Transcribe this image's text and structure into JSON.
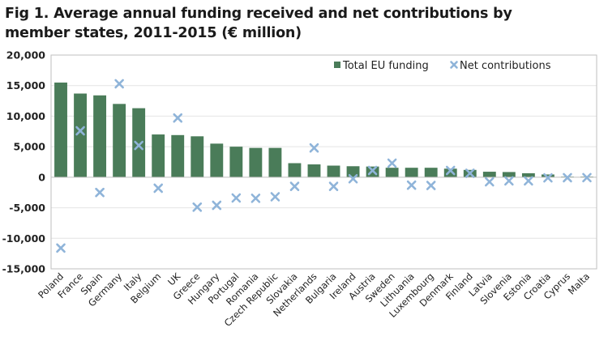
{
  "title_line1": "Fig 1. Average annual funding received and net contributions by",
  "title_line2": "member states, 2011-2015 (€ million)",
  "colors": {
    "bar": "#4a7c59",
    "marker": "#8fb4d9",
    "grid": "#e4e4e4",
    "axis": "#bfbfbf"
  },
  "chart_data": {
    "type": "bar",
    "title": "Fig 1. Average annual funding received and net contributions by member states, 2011-2015 (€ million)",
    "xlabel": "",
    "ylabel": "",
    "ylim": [
      -15000,
      20000
    ],
    "yticks": [
      20000,
      15000,
      10000,
      5000,
      0,
      -5000,
      -10000,
      -15000
    ],
    "ytick_labels": [
      "20,000",
      "15,000",
      "10,000",
      "5,000",
      "0",
      "-5,000",
      "-10,000",
      "-15,000"
    ],
    "grid": true,
    "legend_position": "top-right",
    "categories": [
      "Poland",
      "France",
      "Spain",
      "Germany",
      "Italy",
      "Belgium",
      "UK",
      "Greece",
      "Hungary",
      "Portugal",
      "Romania",
      "Czech Republic",
      "Slovakia",
      "Netherlands",
      "Bulgaria",
      "Ireland",
      "Austria",
      "Sweden",
      "Lithuania",
      "Luxembourg",
      "Denmark",
      "Finland",
      "Latvia",
      "Slovenia",
      "Estonia",
      "Croatia",
      "Cyprus",
      "Malta"
    ],
    "series": [
      {
        "name": "Total EU funding",
        "type": "bar",
        "values": [
          15500,
          13700,
          13400,
          12000,
          11300,
          7000,
          6900,
          6700,
          5500,
          5000,
          4800,
          4800,
          2300,
          2100,
          1900,
          1800,
          1750,
          1550,
          1550,
          1550,
          1400,
          1200,
          900,
          850,
          650,
          450,
          100,
          100
        ]
      },
      {
        "name": "Net contributions",
        "type": "scatter",
        "values": [
          -11600,
          7600,
          -2500,
          15300,
          5200,
          -1800,
          9700,
          -4900,
          -4600,
          -3400,
          -3450,
          -3200,
          -1500,
          4800,
          -1500,
          -250,
          1100,
          2300,
          -1300,
          -1350,
          1100,
          650,
          -750,
          -600,
          -600,
          -100,
          -80,
          -70
        ]
      }
    ]
  }
}
